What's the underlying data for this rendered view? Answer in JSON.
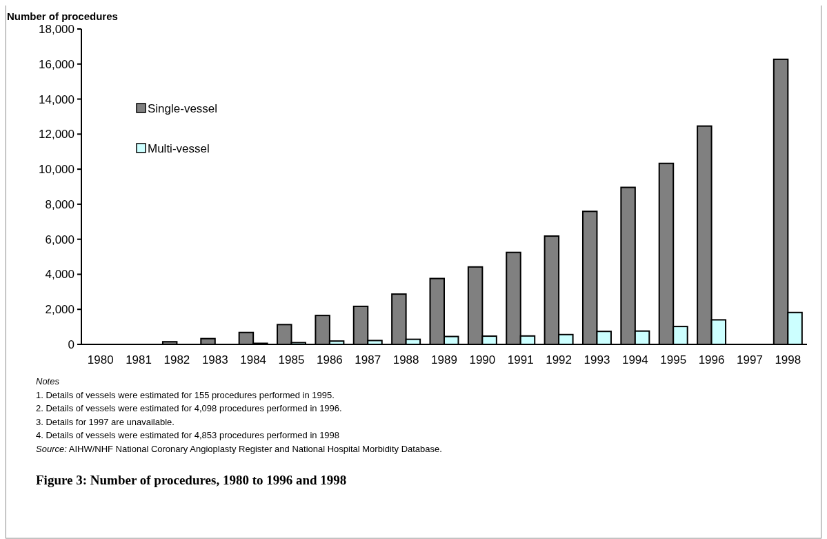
{
  "chart_data": {
    "type": "bar",
    "title": "Figure 3: Number of procedures, 1980 to 1996 and 1998",
    "ylabel": "Number of procedures",
    "categories": [
      "1980",
      "1981",
      "1982",
      "1983",
      "1984",
      "1985",
      "1986",
      "1987",
      "1988",
      "1989",
      "1990",
      "1991",
      "1992",
      "1993",
      "1994",
      "1995",
      "1996",
      "1997",
      "1998"
    ],
    "series": [
      {
        "name": "Single-vessel",
        "color": "#808080",
        "values": [
          null,
          null,
          150,
          330,
          680,
          1130,
          1650,
          2170,
          2870,
          3760,
          4420,
          5250,
          6180,
          7590,
          8960,
          10330,
          12460,
          null,
          16270
        ]
      },
      {
        "name": "Multi-vessel",
        "color": "#ccffff",
        "values": [
          0,
          0,
          0,
          null,
          60,
          100,
          190,
          220,
          290,
          450,
          470,
          480,
          560,
          740,
          760,
          1020,
          1400,
          null,
          1820
        ]
      }
    ],
    "ylim": [
      0,
      18000
    ],
    "yticks": [
      {
        "value": 0,
        "label": "0"
      },
      {
        "value": 2000,
        "label": "2,000"
      },
      {
        "value": 4000,
        "label": "4,000"
      },
      {
        "value": 6000,
        "label": "6,000"
      },
      {
        "value": 8000,
        "label": "8,000"
      },
      {
        "value": 10000,
        "label": "10,000"
      },
      {
        "value": 12000,
        "label": "12,000"
      },
      {
        "value": 14000,
        "label": "14,000"
      },
      {
        "value": 16000,
        "label": "16,000"
      },
      {
        "value": 18000,
        "label": "18,000"
      }
    ],
    "legend": "top left",
    "grid": false,
    "annotations": [
      "Notes",
      "1.  Details of vessels were estimated for 155 procedures performed in 1995.",
      "2.  Details of vessels were estimated for 4,098 procedures performed in 1996.",
      "3.  Details for 1997 are unavailable.",
      "4.  Details of vessels were estimated for 4,853 procedures performed in 1998",
      "Source:  AIHW/NHF National Coronary Angioplasty Register and National Hospital Morbidity Database."
    ]
  }
}
